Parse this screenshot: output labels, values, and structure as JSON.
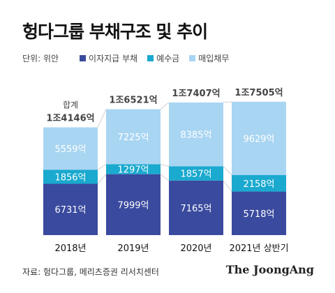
{
  "title": "헝다그룹 부채구조 및 추이",
  "unit": "단위: 위안",
  "source": "자료: 헝다그룹, 메리츠증권 리서치센터",
  "brand": "The JoongAng",
  "colors": {
    "debt": "#3a4a9e",
    "deposit": "#1aa9cf",
    "payable": "#a8d5f2",
    "connector": "#cfcfcf",
    "total_text": "#444444"
  },
  "chart_data": {
    "type": "bar",
    "stacked": true,
    "categories": [
      "2018년",
      "2019년",
      "2020년",
      "2021년 상반기"
    ],
    "series": [
      {
        "name": "이자지급 부채",
        "key": "debt",
        "values": [
          6731,
          7999,
          7165,
          5718
        ],
        "labels": [
          "6731억",
          "7999억",
          "7165억",
          "5718억"
        ]
      },
      {
        "name": "예수금",
        "key": "deposit",
        "values": [
          1856,
          1297,
          1857,
          2158
        ],
        "labels": [
          "1856억",
          "1297억",
          "1857억",
          "2158억"
        ]
      },
      {
        "name": "매입채무",
        "key": "payable",
        "values": [
          5559,
          7225,
          8385,
          9629
        ],
        "labels": [
          "5559억",
          "7225억",
          "8385억",
          "9629억"
        ]
      }
    ],
    "totals": [
      14146,
      16521,
      17407,
      17505
    ],
    "total_labels": [
      "1조4146억",
      "1조6521억",
      "1조7407억",
      "1조7505억"
    ],
    "total_prefix": "합계",
    "legend_position": "top-left",
    "grid": false
  }
}
